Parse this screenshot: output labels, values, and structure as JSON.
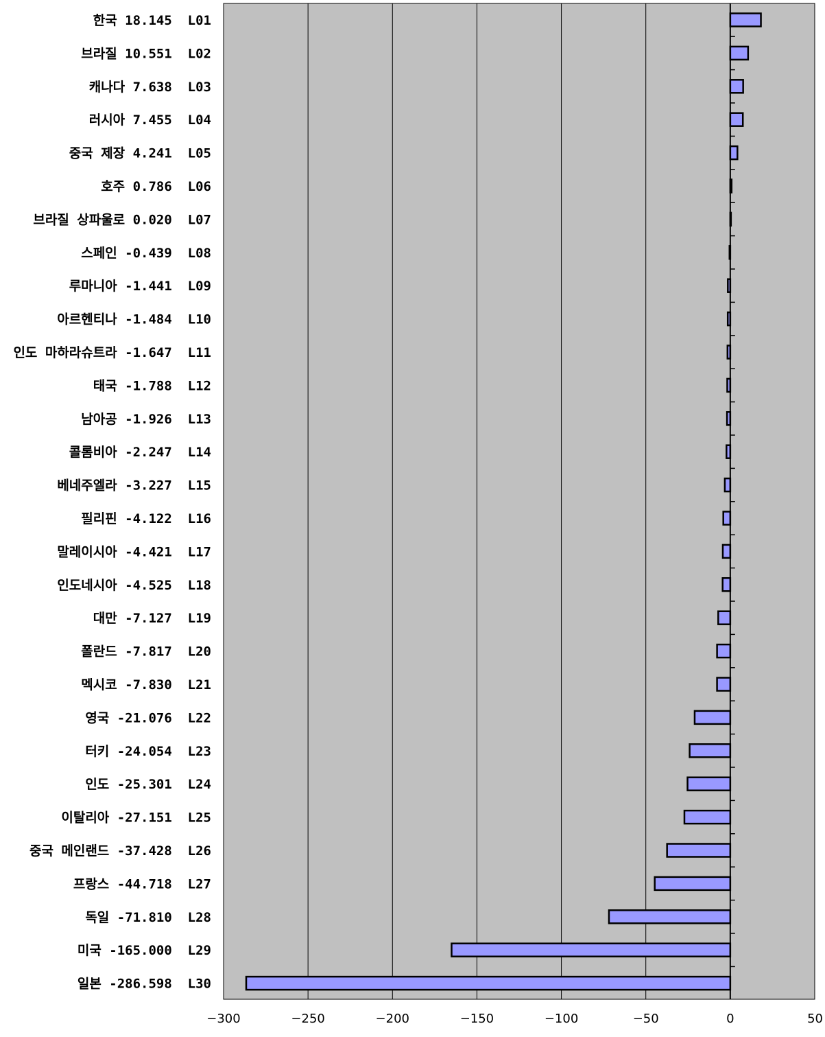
{
  "chart_data": {
    "type": "bar",
    "orientation": "horizontal",
    "categories": [
      "한국 18.145  L01",
      "브라질 10.551  L02",
      "캐나다 7.638  L03",
      "러시아 7.455  L04",
      "중국 제장 4.241  L05",
      "호주 0.786  L06",
      "브라질 상파울로 0.020  L07",
      "스페인 -0.439  L08",
      "루마니아 -1.441  L09",
      "아르헨티나 -1.484  L10",
      "인도 마하라슈트라 -1.647  L11",
      "태국 -1.788  L12",
      "남아공 -1.926  L13",
      "콜롬비아 -2.247  L14",
      "베네주엘라 -3.227  L15",
      "필리핀 -4.122  L16",
      "말레이시아 -4.421  L17",
      "인도네시아 -4.525  L18",
      "대만 -7.127  L19",
      "폴란드 -7.817  L20",
      "멕시코 -7.830  L21",
      "영국 -21.076  L22",
      "터키 -24.054  L23",
      "인도 -25.301  L24",
      "이탈리아 -27.151  L25",
      "중국 메인랜드 -37.428  L26",
      "프랑스 -44.718  L27",
      "독일 -71.810  L28",
      "미국 -165.000  L29",
      "일본 -286.598  L30"
    ],
    "values": [
      18.145,
      10.551,
      7.638,
      7.455,
      4.241,
      0.786,
      0.02,
      -0.439,
      -1.441,
      -1.484,
      -1.647,
      -1.788,
      -1.926,
      -2.247,
      -3.227,
      -4.122,
      -4.421,
      -4.525,
      -7.127,
      -7.817,
      -7.83,
      -21.076,
      -24.054,
      -25.301,
      -27.151,
      -37.428,
      -44.718,
      -71.81,
      -165.0,
      -286.598
    ],
    "xlim": [
      -300,
      50
    ],
    "xticks": [
      -300,
      -250,
      -200,
      -150,
      -100,
      -50,
      0,
      50
    ],
    "xtick_labels": [
      "−300",
      "−250",
      "−200",
      "−150",
      "−100",
      "−50",
      "0",
      "50"
    ],
    "grid": "vertical",
    "legend": "none",
    "title": "",
    "xlabel": "",
    "ylabel": "",
    "colors": {
      "plot_background": "#c0c0c0",
      "bar_fill": "#9999ff",
      "bar_stroke": "#000000",
      "gridline": "#000000"
    }
  }
}
